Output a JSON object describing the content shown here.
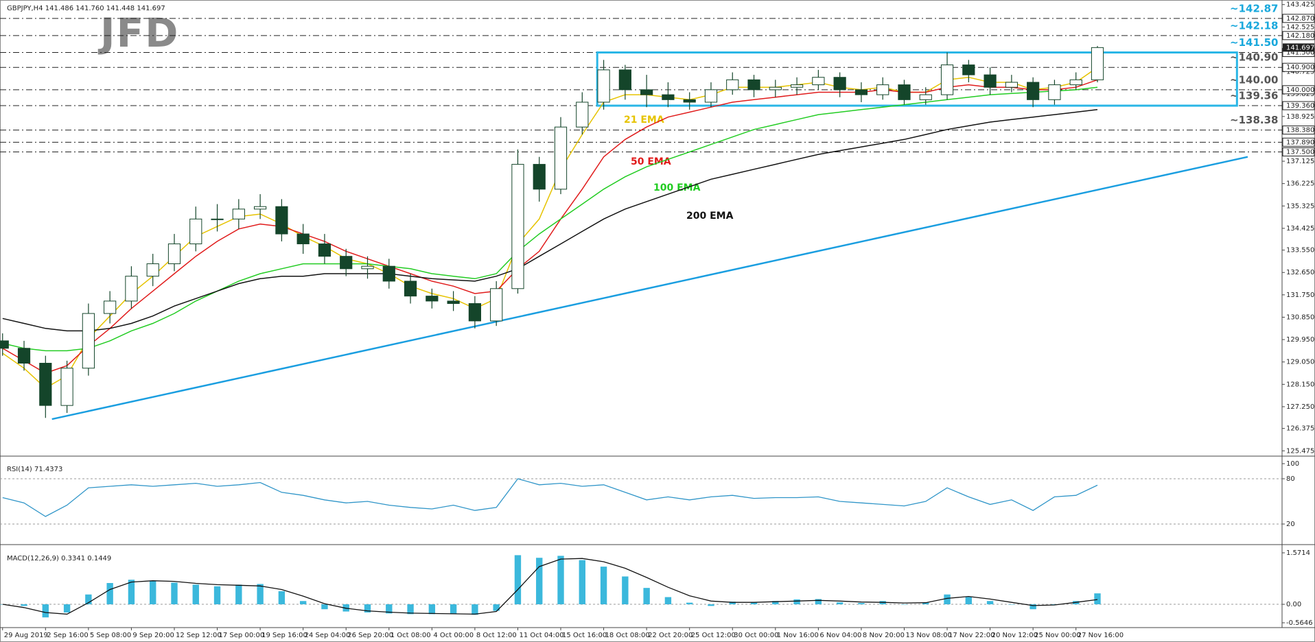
{
  "watermark": "JFD",
  "chart_data": [
    {
      "type": "candlestick",
      "title": "GBPJPY,H4  141.486 141.760 141.448 141.697",
      "categories": [
        "29 Aug 2019",
        null,
        "2 Sep 16:00",
        null,
        "5 Sep 08:00",
        null,
        "9 Sep 20:00",
        null,
        "12 Sep 12:00",
        null,
        "17 Sep 00:00",
        null,
        "19 Sep 16:00",
        null,
        "24 Sep 04:00",
        null,
        "26 Sep 20:00",
        null,
        "1 Oct 08:00",
        null,
        "4 Oct 00:00",
        null,
        "8 Oct 12:00",
        null,
        "11 Oct 04:00",
        null,
        "15 Oct 16:00",
        null,
        "18 Oct 08:00",
        null,
        "22 Oct 20:00",
        null,
        "25 Oct 12:00",
        null,
        "30 Oct 00:00",
        null,
        "1 Nov 16:00",
        null,
        "6 Nov 04:00",
        null,
        "8 Nov 20:00",
        null,
        "13 Nov 08:00",
        null,
        "17 Nov 22:00",
        null,
        "20 Nov 12:00",
        null,
        "25 Nov 00:00",
        null,
        "27 Nov 16:00",
        null
      ],
      "xlim": [
        -0.12,
        59.6
      ],
      "ylim": [
        125.4,
        143.5
      ],
      "yticks": [
        143.425,
        142.525,
        140.725,
        139.825,
        138.925,
        137.125,
        136.225,
        135.325,
        134.425,
        {
          "value": 133.55,
          "label": "133.550"
        },
        {
          "value": 132.65,
          "label": "132.650"
        },
        {
          "value": 131.75,
          "label": "131.750"
        },
        {
          "value": 130.85,
          "label": "130.850"
        },
        {
          "value": 129.95,
          "label": "129.950"
        },
        {
          "value": 129.05,
          "label": "129.050"
        },
        {
          "value": 128.15,
          "label": "128.150"
        },
        {
          "value": 127.25,
          "label": "127.250"
        },
        126.375,
        125.475
      ],
      "candle_colors": {
        "up": "#ffffff",
        "down": "#14452a",
        "outline": "#14452a"
      },
      "ohlc": [
        [
          129.9,
          130.2,
          129.3,
          129.6
        ],
        [
          129.6,
          129.9,
          128.7,
          129.0
        ],
        [
          129.0,
          129.3,
          126.8,
          127.3
        ],
        [
          127.3,
          129.1,
          127.0,
          128.8
        ],
        [
          128.8,
          131.4,
          128.5,
          131.0
        ],
        [
          131.0,
          131.9,
          130.6,
          131.5
        ],
        [
          131.5,
          132.9,
          131.2,
          132.5
        ],
        [
          132.5,
          133.4,
          132.1,
          133.0
        ],
        [
          133.0,
          134.2,
          132.7,
          133.8
        ],
        [
          133.8,
          135.3,
          133.5,
          134.8
        ],
        [
          134.8,
          135.4,
          134.3,
          134.8
        ],
        [
          134.8,
          135.6,
          134.4,
          135.2
        ],
        [
          135.2,
          135.8,
          134.8,
          135.3
        ],
        [
          135.3,
          135.6,
          133.9,
          134.2
        ],
        [
          134.2,
          134.6,
          133.4,
          133.8
        ],
        [
          133.8,
          134.2,
          133.0,
          133.3
        ],
        [
          133.3,
          133.6,
          132.5,
          132.8
        ],
        [
          132.8,
          133.3,
          132.4,
          132.9
        ],
        [
          132.9,
          133.2,
          132.0,
          132.3
        ],
        [
          132.3,
          132.6,
          131.4,
          131.7
        ],
        [
          131.7,
          132.0,
          131.2,
          131.5
        ],
        [
          131.5,
          131.9,
          131.1,
          131.4
        ],
        [
          131.4,
          131.7,
          130.4,
          130.7
        ],
        [
          130.7,
          132.3,
          130.5,
          132.0
        ],
        [
          132.0,
          137.6,
          131.8,
          137.0
        ],
        [
          137.0,
          137.3,
          135.5,
          136.0
        ],
        [
          136.0,
          138.9,
          135.8,
          138.5
        ],
        [
          138.5,
          139.9,
          138.2,
          139.5
        ],
        [
          139.5,
          141.2,
          139.2,
          140.8
        ],
        [
          140.8,
          141.0,
          139.6,
          140.0
        ],
        [
          140.0,
          140.6,
          139.3,
          139.8
        ],
        [
          139.8,
          140.3,
          139.3,
          139.6
        ],
        [
          139.6,
          139.9,
          139.2,
          139.5
        ],
        [
          139.5,
          140.3,
          139.3,
          140.0
        ],
        [
          140.0,
          140.7,
          139.8,
          140.4
        ],
        [
          140.4,
          140.6,
          139.7,
          140.0
        ],
        [
          140.0,
          140.4,
          139.7,
          140.1
        ],
        [
          140.1,
          140.5,
          139.8,
          140.2
        ],
        [
          140.2,
          140.8,
          140.0,
          140.5
        ],
        [
          140.5,
          140.7,
          139.7,
          140.0
        ],
        [
          140.0,
          140.3,
          139.5,
          139.8
        ],
        [
          139.8,
          140.5,
          139.6,
          140.2
        ],
        [
          140.2,
          140.4,
          139.4,
          139.6
        ],
        [
          139.6,
          140.1,
          139.4,
          139.8
        ],
        [
          139.8,
          141.5,
          139.6,
          141.0
        ],
        [
          141.0,
          141.2,
          140.3,
          140.6
        ],
        [
          140.6,
          140.9,
          139.8,
          140.1
        ],
        [
          140.1,
          140.6,
          139.9,
          140.3
        ],
        [
          140.3,
          140.5,
          139.3,
          139.6
        ],
        [
          139.6,
          140.4,
          139.4,
          140.2
        ],
        [
          140.2,
          140.7,
          140.0,
          140.4
        ],
        [
          140.4,
          141.76,
          140.3,
          141.697
        ]
      ],
      "series": [
        {
          "name": "21 EMA",
          "color": "#e6c300",
          "values": [
            129.4,
            128.8,
            128.0,
            128.5,
            130.0,
            130.9,
            131.8,
            132.5,
            133.3,
            134.1,
            134.5,
            134.9,
            135.0,
            134.6,
            134.1,
            133.7,
            133.2,
            133.0,
            132.6,
            132.1,
            131.8,
            131.6,
            131.2,
            131.6,
            133.8,
            134.8,
            136.8,
            138.2,
            139.5,
            139.8,
            139.8,
            139.7,
            139.6,
            139.8,
            140.1,
            140.1,
            140.1,
            140.2,
            140.3,
            140.1,
            140.0,
            140.1,
            139.9,
            139.9,
            140.4,
            140.5,
            140.3,
            140.3,
            140.0,
            140.1,
            140.3,
            140.9
          ]
        },
        {
          "name": "50 EMA",
          "color": "#e01b1b",
          "values": [
            129.6,
            129.1,
            128.6,
            128.9,
            129.7,
            130.4,
            131.2,
            131.9,
            132.6,
            133.3,
            133.9,
            134.4,
            134.6,
            134.5,
            134.2,
            133.9,
            133.5,
            133.2,
            132.9,
            132.6,
            132.3,
            132.1,
            131.8,
            131.9,
            132.8,
            133.5,
            134.8,
            136.0,
            137.3,
            138.0,
            138.5,
            138.9,
            139.1,
            139.3,
            139.5,
            139.6,
            139.7,
            139.8,
            139.9,
            139.9,
            139.9,
            140.0,
            139.9,
            139.9,
            140.1,
            140.2,
            140.1,
            140.1,
            140.0,
            140.0,
            140.1,
            140.4
          ]
        },
        {
          "name": "100 EMA",
          "color": "#22cc22",
          "values": [
            129.8,
            129.6,
            129.5,
            129.5,
            129.6,
            129.9,
            130.3,
            130.6,
            131.0,
            131.5,
            131.9,
            132.3,
            132.6,
            132.8,
            133.0,
            133.0,
            133.0,
            133.0,
            132.9,
            132.8,
            132.6,
            132.5,
            132.4,
            132.6,
            133.5,
            134.2,
            134.8,
            135.4,
            136.0,
            136.5,
            136.9,
            137.2,
            137.5,
            137.8,
            138.1,
            138.4,
            138.6,
            138.8,
            139.0,
            139.1,
            139.2,
            139.3,
            139.4,
            139.5,
            139.6,
            139.7,
            139.8,
            139.85,
            139.9,
            139.95,
            140.0,
            140.1
          ]
        },
        {
          "name": "200 EMA",
          "color": "#111111",
          "values": [
            130.8,
            130.6,
            130.4,
            130.3,
            130.3,
            130.4,
            130.6,
            130.9,
            131.3,
            131.6,
            131.9,
            132.2,
            132.4,
            132.5,
            132.5,
            132.6,
            132.6,
            132.6,
            132.6,
            132.5,
            132.4,
            132.35,
            132.3,
            132.5,
            132.8,
            133.3,
            133.8,
            134.3,
            134.8,
            135.2,
            135.5,
            135.8,
            136.1,
            136.4,
            136.6,
            136.8,
            137.0,
            137.2,
            137.4,
            137.55,
            137.7,
            137.85,
            138.0,
            138.2,
            138.4,
            138.55,
            138.7,
            138.8,
            138.9,
            139.0,
            139.1,
            139.2
          ]
        }
      ],
      "current_price": 141.697,
      "levels": [
        {
          "value": 142.87,
          "label": "~142.87",
          "axis_label": "142.870",
          "color": "#19a8dc"
        },
        {
          "value": 142.18,
          "label": "~142.18",
          "axis_label": "142.180",
          "color": "#19a8dc"
        },
        {
          "value": 141.5,
          "label": "~141.50",
          "axis_label": "141.500",
          "color": "#19a8dc"
        },
        {
          "value": 140.9,
          "label": "~140.90",
          "axis_label": "140.900",
          "color": "#555555"
        },
        {
          "value": 140.0,
          "label": "~140.00",
          "axis_label": "140.000",
          "color": "#555555"
        },
        {
          "value": 139.36,
          "label": "~139.36",
          "axis_label": "139.360",
          "color": "#555555"
        },
        {
          "value": 138.38,
          "label": "~138.38",
          "axis_label": "138.380",
          "color": "#555555"
        },
        {
          "value": 137.89,
          "axis_label": "137.890",
          "color": "#555555"
        },
        {
          "value": 137.5,
          "axis_label": "137.500",
          "color": "#555555"
        }
      ],
      "range_box": {
        "x": [
          27.7,
          57.5
        ],
        "y": [
          139.36,
          141.5
        ],
        "color": "#2ab6e6"
      },
      "trendline": {
        "x": [
          2.3,
          58.0
        ],
        "y": [
          126.75,
          137.3
        ],
        "color": "#1a9ee0"
      }
    },
    {
      "type": "line",
      "title": "RSI(14) 71.4373",
      "ylim": [
        0,
        100
      ],
      "yticks": [
        100,
        80,
        20
      ],
      "series": [
        {
          "color": "#2f95c8",
          "values": [
            55,
            48,
            30,
            45,
            68,
            70,
            72,
            70,
            72,
            74,
            70,
            72,
            75,
            62,
            58,
            52,
            48,
            50,
            45,
            42,
            40,
            45,
            38,
            42,
            80,
            72,
            74,
            70,
            72,
            62,
            52,
            56,
            52,
            56,
            58,
            54,
            55,
            55,
            56,
            50,
            48,
            46,
            44,
            50,
            68,
            56,
            46,
            52,
            38,
            56,
            58,
            71.4373
          ]
        }
      ]
    },
    {
      "type": "macd",
      "title": "MACD(12,26,9) 0.3341 0.1449",
      "ylim": [
        -0.5646,
        1.5714
      ],
      "yticks": [
        1.5714,
        {
          "value": 0,
          "label": "0.00"
        },
        -0.5646
      ],
      "histogram": {
        "color": "#3bb8dc",
        "values": [
          0.0,
          -0.05,
          -0.4,
          -0.25,
          0.3,
          0.65,
          0.75,
          0.72,
          0.66,
          0.6,
          0.55,
          0.6,
          0.62,
          0.4,
          0.1,
          -0.15,
          -0.22,
          -0.25,
          -0.28,
          -0.3,
          -0.3,
          -0.3,
          -0.32,
          -0.2,
          1.5,
          1.42,
          1.48,
          1.35,
          1.15,
          0.85,
          0.5,
          0.22,
          0.05,
          -0.05,
          0.08,
          0.05,
          0.1,
          0.15,
          0.16,
          0.06,
          0.04,
          0.1,
          0.0,
          0.05,
          0.3,
          0.22,
          0.1,
          0.0,
          -0.15,
          0.0,
          0.1,
          0.3341
        ]
      },
      "signal": {
        "color": "#111111",
        "values": [
          0.0,
          -0.1,
          -0.25,
          -0.3,
          0.05,
          0.45,
          0.68,
          0.72,
          0.7,
          0.64,
          0.6,
          0.58,
          0.56,
          0.45,
          0.25,
          0.02,
          -0.12,
          -0.2,
          -0.24,
          -0.27,
          -0.28,
          -0.29,
          -0.3,
          -0.22,
          0.45,
          1.15,
          1.38,
          1.4,
          1.3,
          1.1,
          0.82,
          0.52,
          0.26,
          0.1,
          0.06,
          0.06,
          0.08,
          0.1,
          0.12,
          0.1,
          0.07,
          0.06,
          0.04,
          0.05,
          0.18,
          0.24,
          0.16,
          0.06,
          -0.04,
          -0.02,
          0.06,
          0.1449
        ]
      }
    }
  ]
}
